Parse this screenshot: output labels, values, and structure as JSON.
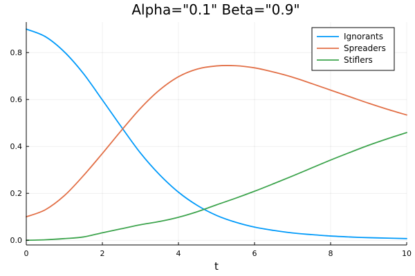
{
  "chart_data": {
    "type": "line",
    "title": "Alpha=\"0.1\"  Beta=\"0.9\"",
    "xlabel": "t",
    "ylabel": "",
    "xlim": [
      0,
      10
    ],
    "ylim": [
      -0.02,
      0.93
    ],
    "grid": true,
    "legend_position": "top-right",
    "xticks": [
      0,
      2,
      4,
      6,
      8,
      10
    ],
    "xtick_labels": [
      "0",
      "2",
      "4",
      "6",
      "8",
      "10"
    ],
    "yticks": [
      0.0,
      0.2,
      0.4,
      0.6,
      0.8
    ],
    "ytick_labels": [
      "0.0",
      "0.2",
      "0.4",
      "0.6",
      "0.8"
    ],
    "x": [
      0,
      0.5,
      1,
      1.5,
      2,
      2.5,
      3,
      3.5,
      4,
      4.5,
      5,
      5.5,
      6,
      6.5,
      7,
      7.5,
      8,
      8.5,
      9,
      9.5,
      10
    ],
    "series": [
      {
        "name": "Ignorants",
        "color": "#009AFA",
        "values": [
          0.9,
          0.868,
          0.803,
          0.711,
          0.598,
          0.483,
          0.372,
          0.28,
          0.205,
          0.148,
          0.106,
          0.077,
          0.056,
          0.042,
          0.031,
          0.024,
          0.018,
          0.014,
          0.011,
          0.009,
          0.007
        ]
      },
      {
        "name": "Spreaders",
        "color": "#E26F46",
        "values": [
          0.1,
          0.13,
          0.19,
          0.275,
          0.37,
          0.468,
          0.562,
          0.64,
          0.697,
          0.73,
          0.743,
          0.744,
          0.735,
          0.717,
          0.695,
          0.668,
          0.64,
          0.612,
          0.584,
          0.558,
          0.534
        ]
      },
      {
        "name": "Stiflers",
        "color": "#3DA44D",
        "values": [
          0.0,
          0.002,
          0.007,
          0.014,
          0.032,
          0.049,
          0.066,
          0.08,
          0.098,
          0.122,
          0.151,
          0.179,
          0.209,
          0.241,
          0.274,
          0.308,
          0.342,
          0.374,
          0.405,
          0.433,
          0.459
        ]
      }
    ]
  }
}
